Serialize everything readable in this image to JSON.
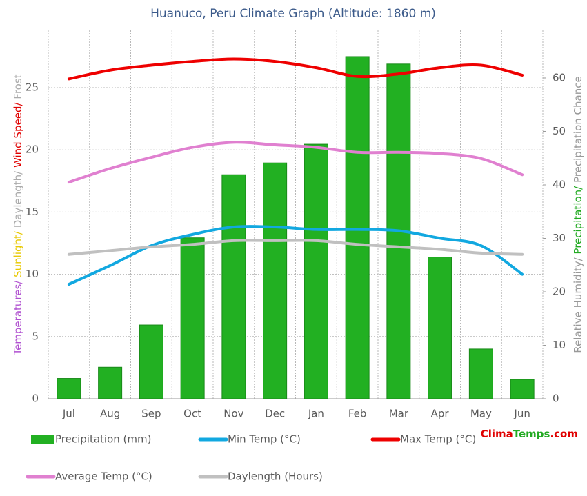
{
  "chart_data": {
    "type": "bar",
    "title": "Huanuco, Peru Climate Graph (Altitude: 1860 m)",
    "categories": [
      "Jul",
      "Aug",
      "Sep",
      "Oct",
      "Nov",
      "Dec",
      "Jan",
      "Feb",
      "Mar",
      "Apr",
      "May",
      "Jun"
    ],
    "ylabel_parts": [
      {
        "text": "Temperatures/",
        "color": "#b050d0"
      },
      {
        "text": " Sunlight/",
        "color": "#e8c800"
      },
      {
        "text": " Daylength/",
        "color": "#aaaaaa"
      },
      {
        "text": " Wind Speed/",
        "color": "#e00000"
      },
      {
        "text": " Frost",
        "color": "#aaaaaa"
      }
    ],
    "y2label_parts": [
      {
        "text": "Relative Humidity/",
        "color": "#999999"
      },
      {
        "text": " Precipitation/",
        "color": "#22aa22"
      },
      {
        "text": " Precipitation Chance",
        "color": "#999999"
      }
    ],
    "ylim": [
      0,
      29.6
    ],
    "yticks": [
      0,
      5,
      10,
      15,
      20,
      25
    ],
    "y2lim": [
      0,
      68.9
    ],
    "y2ticks": [
      0,
      10,
      20,
      30,
      40,
      50,
      60
    ],
    "grid": true,
    "series": [
      {
        "name": "Precipitation (mm)",
        "type": "bar",
        "axis": "y2",
        "color": "#22b022",
        "values": [
          3.8,
          5.9,
          13.8,
          30.1,
          41.9,
          44.1,
          47.6,
          64.0,
          62.6,
          26.5,
          9.3,
          3.6
        ]
      },
      {
        "name": "Min Temp (°C)",
        "type": "line",
        "color": "#12a8e0",
        "values": [
          9.2,
          10.7,
          12.3,
          13.2,
          13.8,
          13.8,
          13.6,
          13.6,
          13.5,
          12.9,
          12.3,
          10.0
        ]
      },
      {
        "name": "Max Temp (°C)",
        "type": "line",
        "color": "#ee0000",
        "values": [
          25.7,
          26.4,
          26.8,
          27.1,
          27.3,
          27.1,
          26.6,
          25.9,
          26.1,
          26.6,
          26.8,
          26.0
        ]
      },
      {
        "name": "Average Temp (°C)",
        "type": "line",
        "color": "#e080d0",
        "values": [
          17.4,
          18.5,
          19.4,
          20.2,
          20.6,
          20.4,
          20.2,
          19.8,
          19.8,
          19.7,
          19.3,
          18.0
        ]
      },
      {
        "name": "Daylength (Hours)",
        "type": "line",
        "color": "#c0c0c0",
        "values": [
          11.6,
          11.9,
          12.2,
          12.4,
          12.7,
          12.7,
          12.7,
          12.4,
          12.2,
          12.0,
          11.7,
          11.6
        ]
      }
    ],
    "brand_parts": [
      {
        "text": "Clima",
        "color": "#e00000"
      },
      {
        "text": "Temps",
        "color": "#22aa22"
      },
      {
        "text": ".com",
        "color": "#e00000"
      }
    ]
  }
}
